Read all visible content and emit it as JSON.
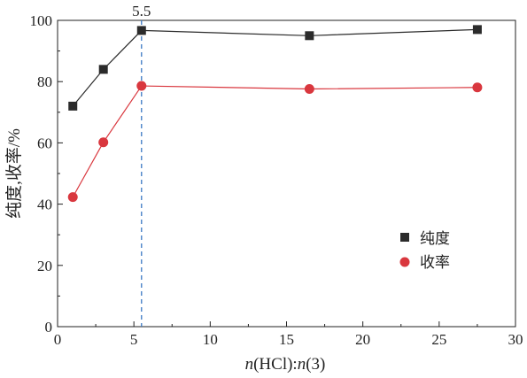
{
  "chart_data": {
    "type": "line",
    "xlabel_parts": {
      "n1": "n",
      "mid": "(HCl):",
      "n2": "n",
      "end": "(3)"
    },
    "ylabel": "纯度,收率/%",
    "xlim": [
      0,
      30
    ],
    "ylim": [
      0,
      100
    ],
    "xticks": [
      0,
      5,
      10,
      15,
      20,
      25,
      30
    ],
    "yticks": [
      0,
      20,
      40,
      60,
      80,
      100
    ],
    "grid": false,
    "legend_position": "right-middle",
    "annotations": [
      {
        "type": "vline",
        "x": 5.5,
        "label": "5.5",
        "style": "dashed",
        "color": "#3b78c4"
      }
    ],
    "series": [
      {
        "name": "纯度",
        "marker": "square",
        "color": "#2b2b2b",
        "x": [
          1,
          3,
          5.5,
          16.5,
          27.5
        ],
        "y": [
          72,
          84,
          96.7,
          95,
          97
        ]
      },
      {
        "name": "收率",
        "marker": "circle",
        "color": "#d9373e",
        "x": [
          1,
          3,
          5.5,
          16.5,
          27.5
        ],
        "y": [
          42.3,
          60.2,
          78.6,
          77.6,
          78.1
        ]
      }
    ]
  }
}
